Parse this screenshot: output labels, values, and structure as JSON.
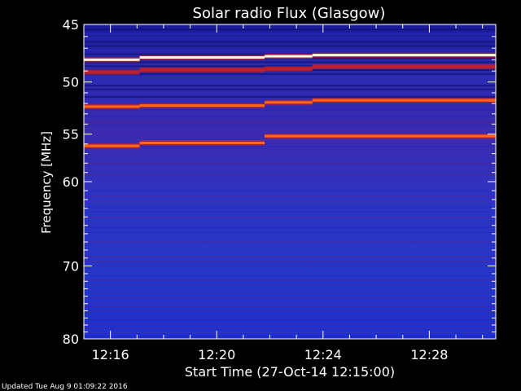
{
  "chart_data": {
    "type": "heatmap",
    "title": "Solar radio Flux (Glasgow)",
    "xlabel": "Start Time (27-Oct-14 12:15:00)",
    "ylabel": "Frequency [MHz]",
    "xlim_minutes_after_start": [
      0,
      15.5
    ],
    "ylim_mhz": [
      45,
      80
    ],
    "y_scale": "log",
    "x_ticks": [
      {
        "label": "12:16",
        "value": 1
      },
      {
        "label": "12:20",
        "value": 5
      },
      {
        "label": "12:24",
        "value": 9
      },
      {
        "label": "12:28",
        "value": 13
      }
    ],
    "y_ticks": [
      {
        "label": "45",
        "value": 45
      },
      {
        "label": "50",
        "value": 50
      },
      {
        "label": "55",
        "value": 55
      },
      {
        "label": "60",
        "value": 60
      },
      {
        "label": "70",
        "value": 70
      },
      {
        "label": "80",
        "value": 80
      }
    ],
    "colormap": [
      "#1020c8",
      "#3a2ab8",
      "#6a1e8a",
      "#c0202a",
      "#ff6a10",
      "#ffd060",
      "#ffffe0"
    ],
    "bright_bands": [
      {
        "segments": [
          [
            0,
            2.1,
            48.0
          ],
          [
            2.1,
            6.8,
            47.8
          ],
          [
            6.8,
            8.6,
            47.7
          ],
          [
            8.6,
            15.5,
            47.6
          ]
        ],
        "intensity": 1.0
      },
      {
        "segments": [
          [
            0,
            2.1,
            52.3
          ],
          [
            2.1,
            6.8,
            52.2
          ],
          [
            6.8,
            8.6,
            51.9
          ],
          [
            8.6,
            15.5,
            51.7
          ]
        ],
        "intensity": 0.75
      },
      {
        "segments": [
          [
            0,
            2.1,
            56.2
          ],
          [
            2.1,
            6.8,
            55.9
          ],
          [
            6.8,
            15.5,
            55.2
          ]
        ],
        "intensity": 0.7
      },
      {
        "segments": [
          [
            0,
            2.1,
            49.1
          ],
          [
            2.1,
            6.8,
            48.9
          ],
          [
            6.8,
            8.6,
            48.8
          ],
          [
            8.6,
            15.5,
            48.6
          ]
        ],
        "intensity": 0.55
      }
    ]
  },
  "footer": {
    "updated": "Updated Tue Aug  9 01:09:22 2016"
  }
}
